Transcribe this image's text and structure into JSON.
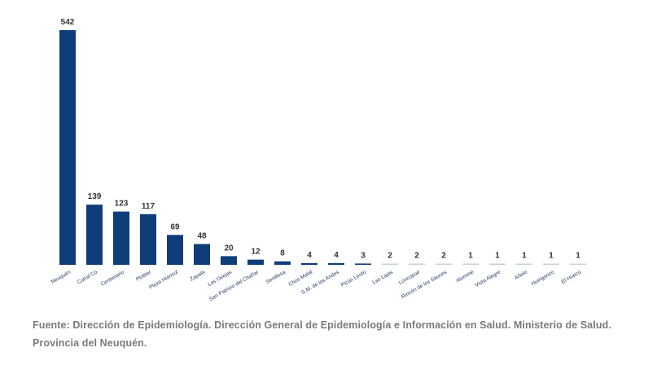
{
  "chart_data": {
    "type": "bar",
    "title": "",
    "xlabel": "",
    "ylabel": "",
    "ylim": [
      0,
      542
    ],
    "grid": false,
    "bar_color": "#0e3d7a",
    "categories": [
      "Neuquén",
      "Cutral Có",
      "Centenario",
      "Plottier",
      "Plaza Huincul",
      "Zapala",
      "Las Ovejas",
      "San Patricio del Chañar",
      "Senillosa",
      "Chos Malal",
      "S.M. de los Andes",
      "Picún Leufú",
      "Las Lajas",
      "Loncopué",
      "Rincón de los Sauces",
      "Aluminé",
      "Vista Alegre",
      "Añelo",
      "Huinganco",
      "El Huecú"
    ],
    "values": [
      542,
      139,
      123,
      117,
      69,
      48,
      20,
      12,
      8,
      4,
      4,
      3,
      2,
      2,
      2,
      1,
      1,
      1,
      1,
      1
    ]
  },
  "footnote": "Fuente: Dirección de Epidemiología. Dirección General de Epidemiología e Información en Salud. Ministerio de Salud. Provincia del Neuquén."
}
